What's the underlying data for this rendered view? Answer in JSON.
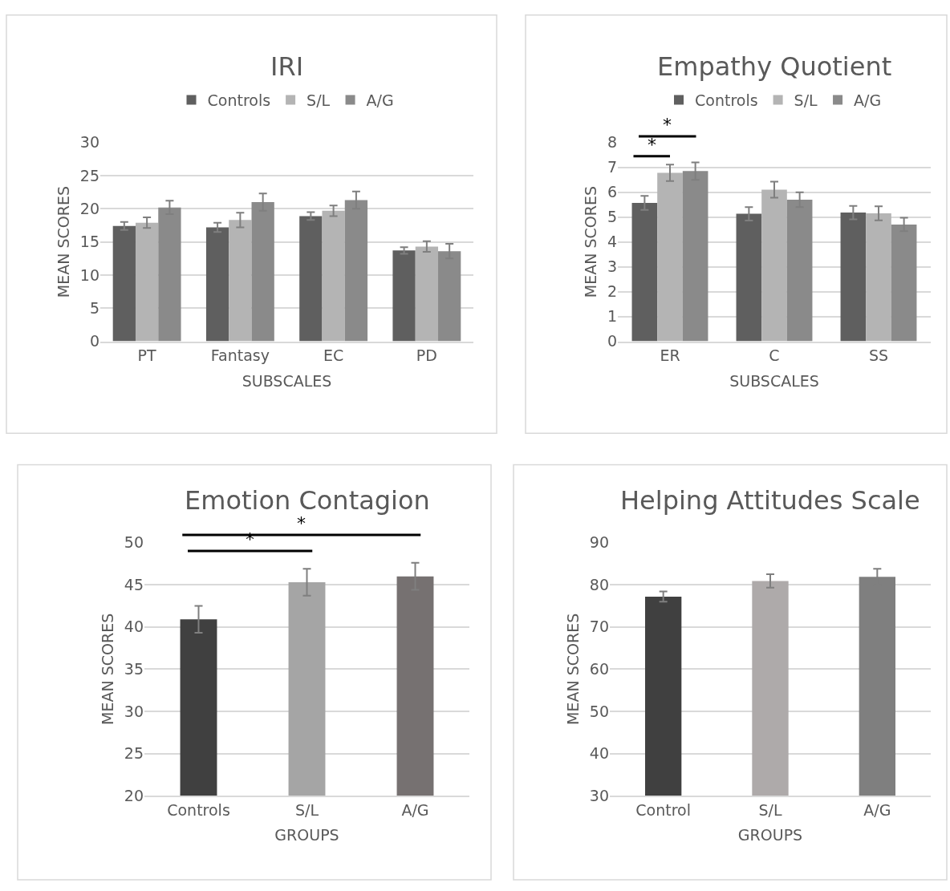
{
  "chart_data": [
    {
      "type": "bar",
      "title": "IRI",
      "xlabel": "SUBSCALES",
      "ylabel": "MEAN SCORES",
      "categories": [
        "PT",
        "Fantasy",
        "EC",
        "PD"
      ],
      "series": [
        {
          "name": "Controls",
          "color": "#5f5f5f",
          "values": [
            17.4,
            17.2,
            18.9,
            13.7
          ],
          "errors": [
            0.6,
            0.7,
            0.6,
            0.5
          ]
        },
        {
          "name": "S/L",
          "color": "#b4b4b4",
          "values": [
            17.9,
            18.3,
            19.7,
            14.3
          ],
          "errors": [
            0.8,
            1.1,
            0.8,
            0.8
          ]
        },
        {
          "name": "A/G",
          "color": "#8a8a8a",
          "values": [
            20.2,
            21.0,
            21.3,
            13.6
          ],
          "errors": [
            1.0,
            1.3,
            1.3,
            1.1
          ]
        }
      ],
      "ylim": [
        0,
        30
      ],
      "yticks": [
        0,
        5,
        10,
        15,
        20,
        25,
        30
      ],
      "grid": "y",
      "legend": "top"
    },
    {
      "type": "bar",
      "title": "Empathy Quotient",
      "xlabel": "SUBSCALES",
      "ylabel": "MEAN SCORES",
      "categories": [
        "ER",
        "C",
        "SS"
      ],
      "series": [
        {
          "name": "Controls",
          "color": "#5f5f5f",
          "values": [
            5.57,
            5.13,
            5.18
          ],
          "errors": [
            0.28,
            0.27,
            0.27
          ]
        },
        {
          "name": "S/L",
          "color": "#b4b4b4",
          "values": [
            6.78,
            6.1,
            5.15
          ],
          "errors": [
            0.33,
            0.32,
            0.28
          ]
        },
        {
          "name": "A/G",
          "color": "#8a8a8a",
          "values": [
            6.85,
            5.7,
            4.7
          ],
          "errors": [
            0.35,
            0.3,
            0.27
          ]
        }
      ],
      "ylim": [
        0,
        8
      ],
      "yticks": [
        0,
        1,
        2,
        3,
        4,
        5,
        6,
        7,
        8
      ],
      "grid": "y",
      "legend": "top",
      "annotations": [
        "*",
        "*"
      ]
    },
    {
      "type": "bar",
      "title": "Emotion Contagion",
      "xlabel": "GROUPS",
      "ylabel": "MEAN SCORES",
      "categories": [
        "Controls",
        "S/L",
        "A/G"
      ],
      "values": [
        40.9,
        45.3,
        46.0
      ],
      "errors": [
        1.6,
        1.6,
        1.6
      ],
      "colors": [
        "#404040",
        "#a5a5a5",
        "#767171"
      ],
      "ylim": [
        20,
        50
      ],
      "yticks": [
        20,
        25,
        30,
        35,
        40,
        45,
        50
      ],
      "grid": "y",
      "annotations": [
        "*",
        "*"
      ]
    },
    {
      "type": "bar",
      "title": "Helping Attitudes Scale",
      "xlabel": "GROUPS",
      "ylabel": "MEAN SCORES",
      "categories": [
        "Control",
        "S/L",
        "A/G"
      ],
      "values": [
        77.2,
        80.9,
        81.9
      ],
      "errors": [
        1.2,
        1.6,
        1.9
      ],
      "colors": [
        "#404040",
        "#aeaaaa",
        "#7f7f7f"
      ],
      "ylim": [
        30,
        90
      ],
      "yticks": [
        30,
        40,
        50,
        60,
        70,
        80,
        90
      ],
      "grid": "y"
    }
  ]
}
